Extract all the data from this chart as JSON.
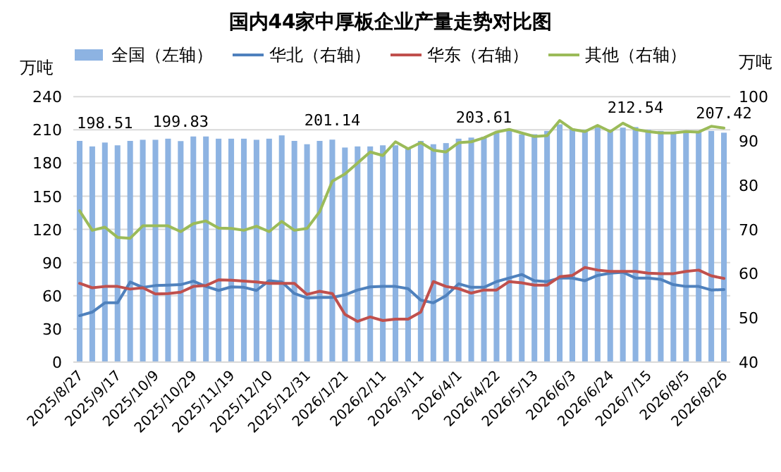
{
  "chart_data": {
    "type": "bar",
    "title": "国内44家中厚板企业产量走势对比图",
    "ylabel": "万吨",
    "y2label": "万吨",
    "categories": [
      "2025/8/27",
      null,
      null,
      "2025/9/17",
      null,
      null,
      "2025/10/9",
      null,
      null,
      "2025/10/29",
      null,
      null,
      "2025/11/19",
      null,
      null,
      "2025/12/10",
      null,
      null,
      "2025/12/31",
      null,
      null,
      "2026/1/21",
      null,
      null,
      "2026/2/11",
      null,
      null,
      "2026/3/11",
      null,
      null,
      "2026/4/1",
      null,
      null,
      "2026/4/22",
      null,
      null,
      "2026/5/13",
      null,
      null,
      "2026/6/3",
      null,
      null,
      "2026/6/24",
      null,
      null,
      "2026/7/15",
      null,
      null,
      "2026/8/5",
      null,
      null,
      "2026/8/26"
    ],
    "series": [
      {
        "name": "全国（左轴）",
        "color": "#8db3e2",
        "values": [
          200,
          195,
          198.51,
          196,
          200,
          201,
          201,
          202,
          199.83,
          204,
          204,
          202,
          202,
          202,
          201,
          202,
          205,
          200,
          197,
          200,
          201.14,
          194,
          195,
          195,
          196,
          196,
          194,
          200,
          197,
          198,
          202,
          203,
          203.61,
          207,
          209,
          206,
          206,
          209,
          215,
          211,
          210,
          212,
          210,
          212,
          212.54,
          210,
          209,
          208,
          207,
          208,
          209,
          207.42
        ],
        "value_labels": [
          null,
          null,
          "198.51",
          null,
          null,
          null,
          null,
          null,
          "199.83",
          null,
          null,
          null,
          null,
          null,
          null,
          null,
          null,
          null,
          null,
          null,
          "201.14",
          null,
          null,
          null,
          null,
          null,
          null,
          null,
          null,
          null,
          null,
          null,
          "203.61",
          null,
          null,
          null,
          null,
          null,
          null,
          null,
          null,
          null,
          null,
          null,
          "212.54",
          null,
          null,
          null,
          null,
          null,
          null,
          "207.42"
        ]
      },
      {
        "name": "华北（右轴）",
        "type": "line",
        "axis": "y2",
        "color": "#4f81bd",
        "values": [
          50.5,
          51.3,
          53.4,
          53.4,
          58.1,
          56.9,
          57.3,
          57.4,
          57.5,
          58.3,
          57.1,
          56.2,
          57.0,
          56.9,
          56.2,
          58.4,
          58.1,
          55.5,
          54.5,
          54.6,
          54.6,
          55.2,
          56.3,
          57.0,
          57.1,
          57.1,
          56.6,
          54.0,
          53.4,
          55.0,
          57.7,
          56.9,
          56.9,
          58.2,
          59.0,
          59.8,
          58.4,
          58.2,
          59.0,
          59.0,
          58.4,
          59.6,
          60.1,
          60.3,
          59.0,
          59.0,
          58.7,
          57.5,
          57.1,
          57.1,
          56.3,
          56.4
        ]
      },
      {
        "name": "华东（右轴）",
        "type": "line",
        "axis": "y2",
        "color": "#c0504d",
        "values": [
          57.8,
          56.8,
          57.1,
          57.1,
          56.5,
          56.8,
          55.4,
          55.5,
          55.8,
          57.1,
          57.3,
          58.6,
          58.5,
          58.3,
          58.1,
          57.8,
          57.8,
          57.8,
          55.3,
          56.0,
          55.5,
          50.8,
          49.2,
          50.2,
          49.4,
          49.7,
          49.7,
          51.3,
          58.2,
          57.1,
          56.6,
          55.6,
          56.3,
          56.3,
          58.2,
          57.9,
          57.4,
          57.4,
          59.3,
          59.6,
          61.4,
          60.8,
          60.5,
          60.5,
          60.5,
          60.1,
          60.0,
          60.0,
          60.5,
          60.8,
          59.5,
          58.9
        ]
      },
      {
        "name": "其他（右轴）",
        "type": "line",
        "axis": "y2",
        "color": "#9bbb59",
        "values": [
          74.2,
          69.8,
          70.5,
          68.2,
          68.0,
          70.8,
          70.8,
          70.8,
          69.5,
          71.3,
          71.9,
          70.3,
          70.2,
          69.8,
          70.7,
          69.5,
          71.8,
          69.8,
          70.2,
          74.0,
          80.9,
          82.5,
          85.0,
          87.5,
          86.7,
          89.8,
          88.2,
          89.6,
          87.9,
          87.5,
          89.6,
          89.8,
          90.7,
          92.0,
          92.6,
          91.8,
          91.0,
          91.2,
          94.6,
          92.6,
          92.1,
          93.5,
          92.1,
          94.0,
          92.6,
          92.1,
          91.8,
          91.8,
          92.1,
          92.0,
          93.3,
          92.9
        ]
      }
    ],
    "ylim": [
      0,
      240
    ],
    "yticks": [
      0,
      30,
      60,
      90,
      120,
      150,
      180,
      210,
      240
    ],
    "y2lim": [
      40,
      100
    ],
    "y2ticks": [
      40,
      50,
      60,
      70,
      80,
      90,
      100
    ],
    "grid": "y",
    "legend": "top"
  }
}
